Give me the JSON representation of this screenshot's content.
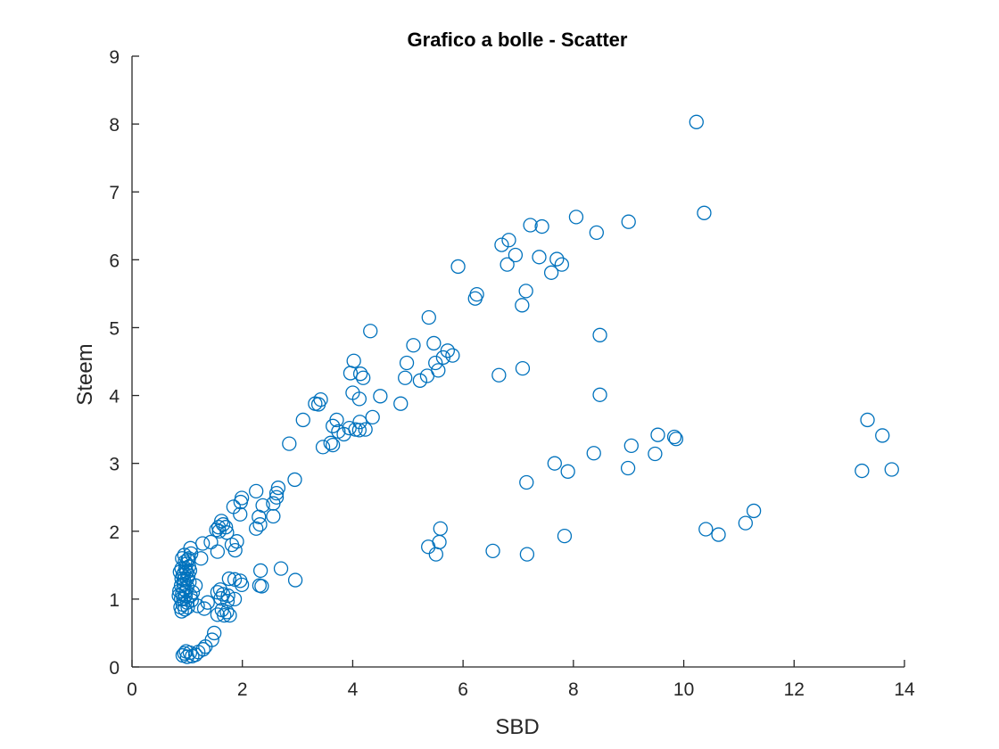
{
  "chart_data": {
    "type": "scatter",
    "title": "Grafico a bolle - Scatter",
    "xlabel": "SBD",
    "ylabel": "Steem",
    "xlim": [
      0,
      14
    ],
    "ylim": [
      0,
      9
    ],
    "xticks": [
      0,
      2,
      4,
      6,
      8,
      10,
      12,
      14
    ],
    "yticks": [
      0,
      1,
      2,
      3,
      4,
      5,
      6,
      7,
      8,
      9
    ],
    "grid": false,
    "legend": "none",
    "marker": "circle-open",
    "color": "#0072BD",
    "series": [
      {
        "points": [
          [
            10.23,
            8.03
          ],
          [
            10.37,
            6.69
          ],
          [
            9.0,
            6.56
          ],
          [
            8.05,
            6.63
          ],
          [
            8.42,
            6.4
          ],
          [
            7.22,
            6.51
          ],
          [
            7.43,
            6.49
          ],
          [
            6.83,
            6.29
          ],
          [
            6.7,
            6.22
          ],
          [
            6.95,
            6.07
          ],
          [
            7.38,
            6.04
          ],
          [
            7.7,
            6.01
          ],
          [
            7.79,
            5.93
          ],
          [
            6.8,
            5.93
          ],
          [
            7.6,
            5.81
          ],
          [
            5.91,
            5.9
          ],
          [
            7.14,
            5.54
          ],
          [
            6.25,
            5.49
          ],
          [
            6.22,
            5.43
          ],
          [
            7.07,
            5.33
          ],
          [
            5.38,
            5.15
          ],
          [
            4.32,
            4.95
          ],
          [
            8.48,
            4.89
          ],
          [
            5.1,
            4.74
          ],
          [
            5.47,
            4.77
          ],
          [
            5.72,
            4.66
          ],
          [
            5.81,
            4.59
          ],
          [
            5.64,
            4.56
          ],
          [
            4.98,
            4.48
          ],
          [
            5.5,
            4.48
          ],
          [
            4.02,
            4.51
          ],
          [
            5.55,
            4.37
          ],
          [
            7.08,
            4.4
          ],
          [
            3.96,
            4.33
          ],
          [
            4.14,
            4.32
          ],
          [
            4.19,
            4.26
          ],
          [
            4.95,
            4.26
          ],
          [
            5.35,
            4.29
          ],
          [
            5.22,
            4.22
          ],
          [
            6.65,
            4.3
          ],
          [
            4.5,
            3.99
          ],
          [
            4.0,
            4.04
          ],
          [
            8.48,
            4.01
          ],
          [
            4.12,
            3.95
          ],
          [
            3.42,
            3.94
          ],
          [
            3.32,
            3.88
          ],
          [
            3.38,
            3.87
          ],
          [
            4.87,
            3.88
          ],
          [
            4.36,
            3.68
          ],
          [
            3.1,
            3.64
          ],
          [
            3.71,
            3.64
          ],
          [
            4.13,
            3.61
          ],
          [
            3.64,
            3.55
          ],
          [
            3.74,
            3.47
          ],
          [
            3.94,
            3.52
          ],
          [
            4.05,
            3.5
          ],
          [
            4.12,
            3.49
          ],
          [
            4.23,
            3.5
          ],
          [
            3.84,
            3.43
          ],
          [
            3.6,
            3.3
          ],
          [
            3.64,
            3.27
          ],
          [
            3.46,
            3.24
          ],
          [
            2.85,
            3.29
          ],
          [
            13.33,
            3.64
          ],
          [
            13.6,
            3.41
          ],
          [
            9.53,
            3.42
          ],
          [
            9.83,
            3.39
          ],
          [
            9.86,
            3.36
          ],
          [
            9.05,
            3.26
          ],
          [
            9.48,
            3.14
          ],
          [
            8.37,
            3.15
          ],
          [
            7.66,
            3.0
          ],
          [
            8.99,
            2.93
          ],
          [
            7.9,
            2.88
          ],
          [
            13.23,
            2.89
          ],
          [
            13.77,
            2.91
          ],
          [
            7.15,
            2.72
          ],
          [
            2.95,
            2.76
          ],
          [
            2.65,
            2.64
          ],
          [
            2.62,
            2.56
          ],
          [
            2.62,
            2.5
          ],
          [
            2.25,
            2.59
          ],
          [
            1.99,
            2.49
          ],
          [
            1.97,
            2.43
          ],
          [
            2.56,
            2.41
          ],
          [
            2.37,
            2.38
          ],
          [
            1.84,
            2.36
          ],
          [
            1.96,
            2.25
          ],
          [
            2.3,
            2.21
          ],
          [
            2.56,
            2.22
          ],
          [
            1.62,
            2.15
          ],
          [
            1.65,
            2.1
          ],
          [
            1.57,
            2.06
          ],
          [
            1.7,
            2.06
          ],
          [
            1.53,
            2.02
          ],
          [
            1.58,
            2.0
          ],
          [
            1.72,
            1.98
          ],
          [
            2.25,
            2.04
          ],
          [
            2.32,
            2.1
          ],
          [
            11.27,
            2.3
          ],
          [
            11.12,
            2.12
          ],
          [
            10.4,
            2.03
          ],
          [
            10.63,
            1.95
          ],
          [
            5.59,
            2.04
          ],
          [
            7.84,
            1.93
          ],
          [
            1.9,
            1.85
          ],
          [
            1.81,
            1.8
          ],
          [
            1.87,
            1.72
          ],
          [
            1.43,
            1.84
          ],
          [
            1.28,
            1.82
          ],
          [
            1.06,
            1.75
          ],
          [
            1.07,
            1.67
          ],
          [
            1.55,
            1.7
          ],
          [
            5.37,
            1.77
          ],
          [
            5.57,
            1.84
          ],
          [
            6.54,
            1.71
          ],
          [
            5.51,
            1.66
          ],
          [
            7.16,
            1.66
          ],
          [
            1.25,
            1.6
          ],
          [
            1.03,
            1.6
          ],
          [
            2.33,
            1.42
          ],
          [
            2.7,
            1.45
          ],
          [
            2.96,
            1.28
          ],
          [
            1.76,
            1.3
          ],
          [
            1.86,
            1.29
          ],
          [
            1.96,
            1.27
          ],
          [
            1.99,
            1.21
          ],
          [
            2.31,
            1.2
          ],
          [
            2.35,
            1.19
          ],
          [
            1.6,
            1.14
          ],
          [
            1.55,
            1.1
          ],
          [
            1.65,
            1.07
          ],
          [
            1.74,
            1.05
          ],
          [
            1.15,
            1.2
          ],
          [
            1.1,
            1.1
          ],
          [
            1.61,
            1.01
          ],
          [
            1.73,
            0.97
          ],
          [
            1.86,
            1.0
          ],
          [
            1.37,
            0.95
          ],
          [
            1.19,
            0.9
          ],
          [
            1.31,
            0.86
          ],
          [
            1.63,
            0.84
          ],
          [
            1.72,
            0.81
          ],
          [
            1.55,
            0.77
          ],
          [
            1.67,
            0.76
          ],
          [
            1.77,
            0.76
          ],
          [
            1.49,
            0.5
          ],
          [
            1.45,
            0.4
          ],
          [
            1.33,
            0.3
          ],
          [
            1.29,
            0.26
          ],
          [
            1.2,
            0.22
          ],
          [
            1.15,
            0.18
          ],
          [
            1.09,
            0.16
          ],
          [
            1.0,
            0.15
          ],
          [
            0.95,
            0.2
          ],
          [
            0.92,
            0.17
          ],
          [
            0.98,
            0.23
          ],
          [
            1.05,
            0.21
          ],
          [
            0.89,
            1.0
          ],
          [
            0.91,
            1.08
          ],
          [
            0.93,
            1.15
          ],
          [
            0.95,
            1.22
          ],
          [
            0.9,
            1.3
          ],
          [
            0.94,
            1.38
          ],
          [
            0.97,
            1.45
          ],
          [
            0.99,
            1.52
          ],
          [
            1.01,
            1.58
          ],
          [
            0.92,
            0.92
          ],
          [
            0.88,
            0.88
          ],
          [
            0.96,
            0.85
          ],
          [
            1.0,
            0.95
          ],
          [
            0.87,
            1.4
          ],
          [
            0.9,
            1.45
          ],
          [
            0.96,
            1.55
          ],
          [
            1.02,
            1.35
          ],
          [
            1.04,
            1.25
          ],
          [
            1.0,
            1.18
          ],
          [
            0.98,
            1.12
          ],
          [
            0.97,
            1.05
          ],
          [
            0.93,
            1.0
          ],
          [
            0.89,
            1.2
          ],
          [
            0.86,
            1.12
          ],
          [
            1.03,
            1.48
          ],
          [
            1.05,
            1.42
          ],
          [
            0.91,
            1.6
          ],
          [
            0.95,
            1.65
          ],
          [
            1.0,
            1.3
          ],
          [
            0.94,
            1.28
          ],
          [
            0.92,
            1.35
          ],
          [
            0.99,
            1.4
          ],
          [
            1.06,
            1.05
          ],
          [
            1.08,
            0.98
          ],
          [
            0.85,
            1.05
          ],
          [
            0.9,
            0.82
          ],
          [
            1.01,
            0.88
          ]
        ]
      }
    ]
  }
}
